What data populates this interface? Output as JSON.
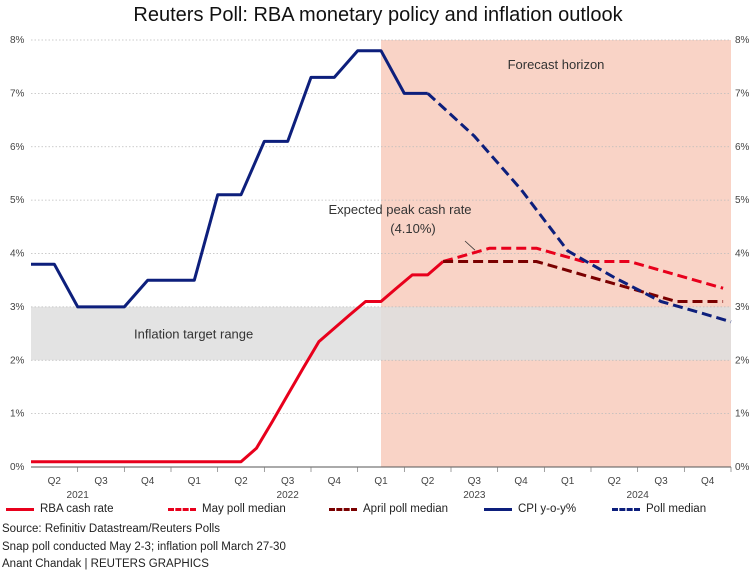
{
  "chart_data": {
    "type": "line",
    "title": "Reuters Poll: RBA monetary policy and inflation outlook",
    "y_axis": {
      "min": 0,
      "max": 8,
      "ticks": [
        "0%",
        "1%",
        "2%",
        "3%",
        "4%",
        "5%",
        "6%",
        "7%",
        "8%"
      ]
    },
    "x_axis": {
      "quarter_labels": [
        "Q2",
        "Q3",
        "Q4",
        "Q1",
        "Q2",
        "Q3",
        "Q4",
        "Q1",
        "Q2",
        "Q3",
        "Q4",
        "Q1",
        "Q2",
        "Q3",
        "Q4"
      ],
      "year_labels": [
        {
          "label": "2021",
          "at": 1
        },
        {
          "label": "2022",
          "at": 5.5
        },
        {
          "label": "2023",
          "at": 9.5
        },
        {
          "label": "2024",
          "at": 13
        }
      ]
    },
    "inflation_target_band": {
      "low": 2,
      "high": 3,
      "label": "Inflation target range"
    },
    "forecast_horizon": {
      "start": 7.5,
      "end": 15,
      "label": "Forecast horizon"
    },
    "annotation": {
      "line1": "Expected peak cash rate",
      "line2": "(4.10%)",
      "target": [
        9.6,
        4.1
      ]
    },
    "series": [
      {
        "name": "RBA cash rate",
        "color": "#e8001c",
        "dash": false,
        "points": [
          [
            0,
            0.1
          ],
          [
            4.5,
            0.1
          ],
          [
            4.83,
            0.35
          ],
          [
            5.17,
            0.85
          ],
          [
            5.5,
            1.35
          ],
          [
            5.83,
            1.85
          ],
          [
            6.17,
            2.35
          ],
          [
            6.5,
            2.6
          ],
          [
            6.83,
            2.85
          ],
          [
            7.17,
            3.1
          ],
          [
            7.5,
            3.1
          ],
          [
            7.83,
            3.35
          ],
          [
            8.17,
            3.6
          ],
          [
            8.5,
            3.6
          ],
          [
            8.83,
            3.85
          ]
        ]
      },
      {
        "name": "May poll median",
        "color": "#e8001c",
        "dash": true,
        "points": [
          [
            8.83,
            3.85
          ],
          [
            9.83,
            4.1
          ],
          [
            10.83,
            4.1
          ],
          [
            11.83,
            3.85
          ],
          [
            12.83,
            3.85
          ],
          [
            13.83,
            3.6
          ],
          [
            14.83,
            3.35
          ]
        ]
      },
      {
        "name": "April poll median",
        "color": "#7a0000",
        "dash": true,
        "points": [
          [
            8.83,
            3.85
          ],
          [
            9.83,
            3.85
          ],
          [
            10.83,
            3.85
          ],
          [
            11.83,
            3.6
          ],
          [
            12.83,
            3.35
          ],
          [
            13.83,
            3.1
          ],
          [
            14.83,
            3.1
          ]
        ]
      },
      {
        "name": "CPI y-o-y%",
        "color": "#0d1f7c",
        "dash": false,
        "points": [
          [
            0,
            3.8
          ],
          [
            0.5,
            3.8
          ],
          [
            1,
            3.0
          ],
          [
            2,
            3.0
          ],
          [
            2.5,
            3.5
          ],
          [
            3.5,
            3.5
          ],
          [
            4,
            5.1
          ],
          [
            4.5,
            5.1
          ],
          [
            5,
            6.1
          ],
          [
            5.5,
            6.1
          ],
          [
            6,
            7.3
          ],
          [
            6.5,
            7.3
          ],
          [
            7,
            7.8
          ],
          [
            7.5,
            7.8
          ],
          [
            8,
            7.0
          ],
          [
            8.5,
            7.0
          ]
        ]
      },
      {
        "name": "Poll median",
        "color": "#0d1f7c",
        "dash": true,
        "points": [
          [
            8.5,
            7.0
          ],
          [
            9.5,
            6.2
          ],
          [
            10.5,
            5.2
          ],
          [
            11.5,
            4.05
          ],
          [
            12.5,
            3.55
          ],
          [
            13.5,
            3.1
          ],
          [
            14.5,
            2.85
          ],
          [
            15,
            2.72
          ]
        ]
      }
    ]
  },
  "legend": [
    {
      "label": "RBA cash rate",
      "color": "#e8001c",
      "dash": false
    },
    {
      "label": "May poll median",
      "color": "#e8001c",
      "dash": true
    },
    {
      "label": "April poll median",
      "color": "#7a0000",
      "dash": true
    },
    {
      "label": "CPI y-o-y%",
      "color": "#0d1f7c",
      "dash": false
    },
    {
      "label": "Poll median",
      "color": "#0d1f7c",
      "dash": true
    }
  ],
  "footer": {
    "source": "Source: Refinitiv Datastream/Reuters Polls",
    "note": "Snap poll conducted May 2-3; inflation poll March 27-30",
    "credit": "Anant Chandak | REUTERS GRAPHICS"
  },
  "colors": {
    "band": "#dedede",
    "forecast": "#f9d3c6",
    "grid": "#bbbbbb"
  }
}
